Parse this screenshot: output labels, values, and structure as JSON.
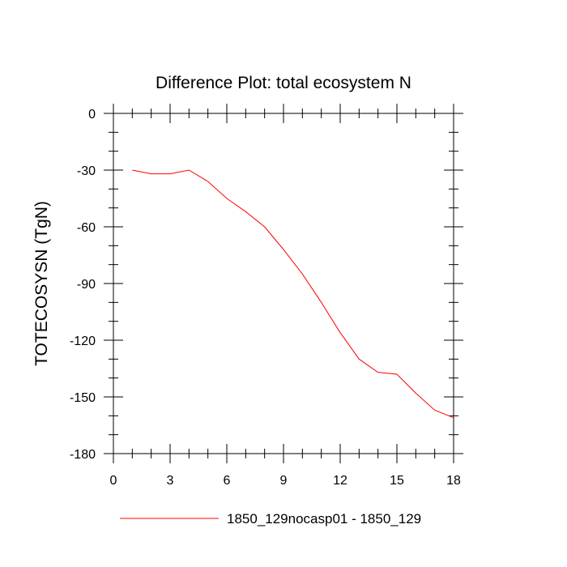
{
  "chart_data": {
    "type": "line",
    "title": "Difference Plot: total ecosystem N",
    "xlabel": "",
    "ylabel": "TOTECOSYSN  (TgN)",
    "xlim": [
      0,
      18
    ],
    "ylim": [
      -180,
      0
    ],
    "xticks": [
      0,
      3,
      6,
      9,
      12,
      15,
      18
    ],
    "xtick_labels": [
      "0",
      "3",
      "6",
      "9",
      "12",
      "15",
      "18"
    ],
    "yticks": [
      0,
      -30,
      -60,
      -90,
      -120,
      -150,
      -180
    ],
    "ytick_labels": [
      "0",
      "-30",
      "-60",
      "-90",
      "-120",
      "-150",
      "-180"
    ],
    "grid": false,
    "legend_position": "bottom",
    "series": [
      {
        "name": "1850_129nocasp01 - 1850_129",
        "color": "#ff0000",
        "x": [
          1,
          2,
          3,
          4,
          5,
          6,
          7,
          8,
          9,
          10,
          11,
          12,
          13,
          14,
          15,
          16,
          17,
          18
        ],
        "y": [
          -30,
          -32,
          -32,
          -30,
          -36,
          -45,
          -52,
          -60,
          -72,
          -85,
          -100,
          -116,
          -130,
          -137,
          -138,
          -148,
          -157,
          -161
        ]
      }
    ]
  }
}
